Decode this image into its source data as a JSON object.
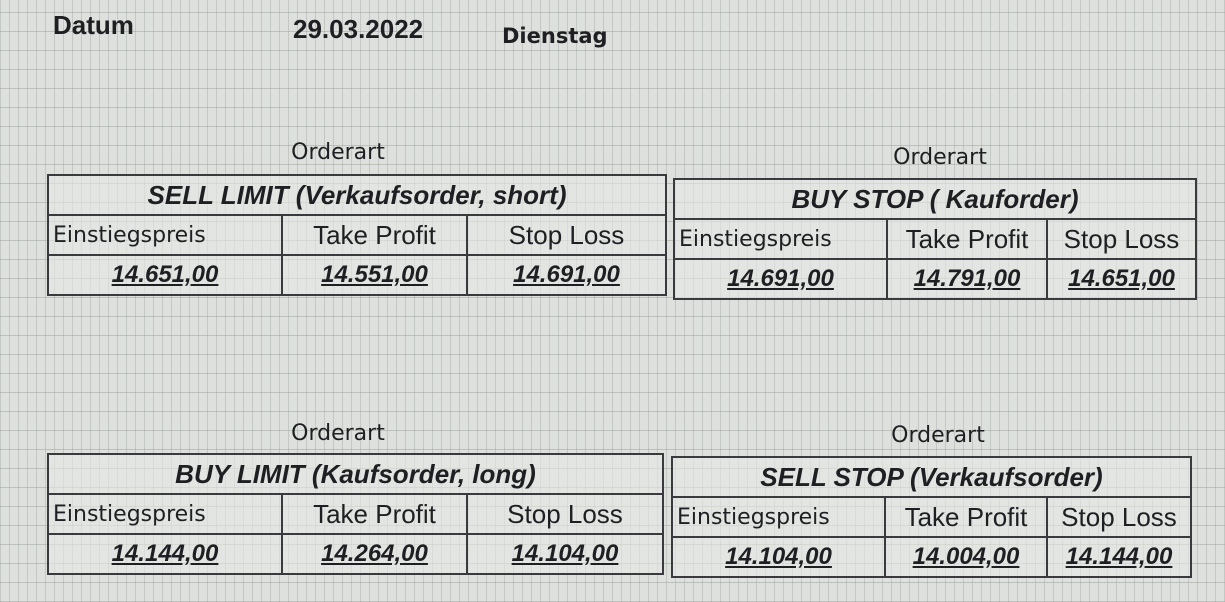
{
  "header": {
    "label": "Datum",
    "date": "29.03.2022",
    "weekday": "Dienstag"
  },
  "orders": [
    {
      "caption": "Orderart",
      "title": "SELL LIMIT (Verkaufsorder, short)",
      "columns": [
        "Einstiegspreis",
        "Take Profit",
        "Stop Loss"
      ],
      "values": [
        "14.651,00",
        "14.551,00",
        "14.691,00"
      ]
    },
    {
      "caption": "Orderart",
      "title": "BUY STOP ( Kauforder)",
      "columns": [
        "Einstiegspreis",
        "Take Profit",
        "Stop Loss"
      ],
      "values": [
        "14.691,00",
        "14.791,00",
        "14.651,00"
      ]
    },
    {
      "caption": "Orderart",
      "title": "BUY LIMIT (Kaufsorder, long)",
      "columns": [
        "Einstiegspreis",
        "Take Profit",
        "Stop Loss"
      ],
      "values": [
        "14.144,00",
        "14.264,00",
        "14.104,00"
      ]
    },
    {
      "caption": "Orderart",
      "title": "SELL STOP (Verkaufsorder)",
      "columns": [
        "Einstiegspreis",
        "Take Profit",
        "Stop Loss"
      ],
      "values": [
        "14.104,00",
        "14.004,00",
        "14.144,00"
      ]
    }
  ]
}
